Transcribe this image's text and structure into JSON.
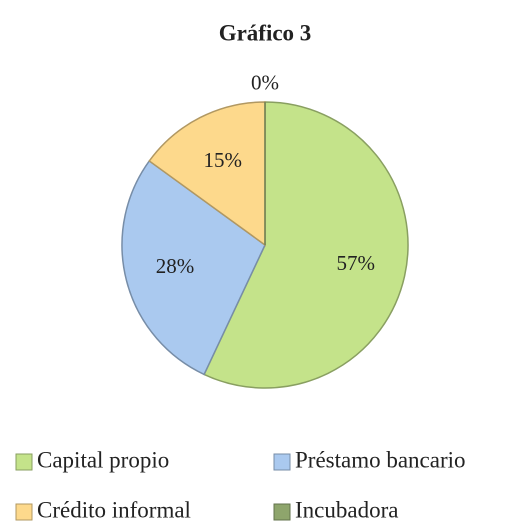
{
  "chart_data": {
    "type": "pie",
    "title": "Gráfico 3",
    "categories": [
      "Capital propio",
      "Préstamo bancario",
      "Crédito informal",
      "Incubadora"
    ],
    "values": [
      57,
      28,
      15,
      0
    ],
    "value_labels": [
      "57%",
      "28%",
      "15%",
      "0%"
    ],
    "colors": [
      "#c4e38a",
      "#aac9ef",
      "#fdd98c",
      "#8ea56c"
    ]
  }
}
